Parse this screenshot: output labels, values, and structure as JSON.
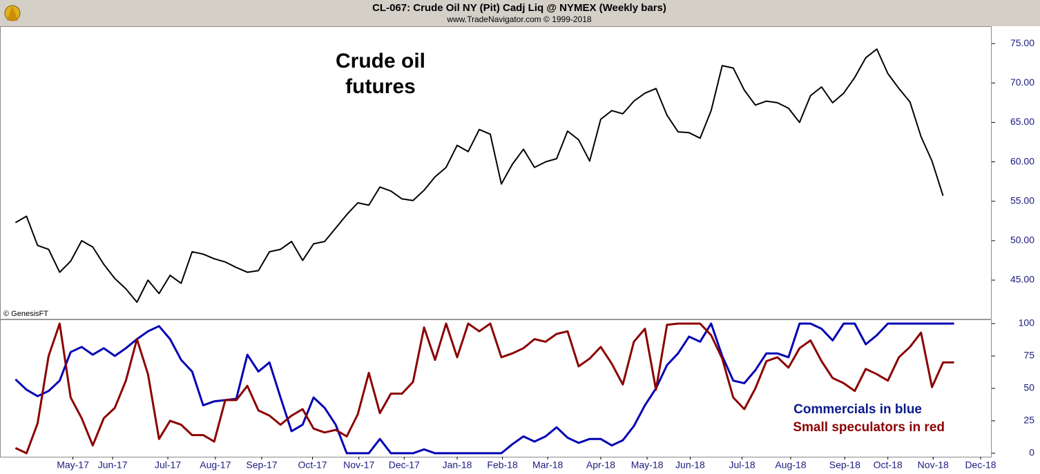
{
  "header": {
    "title": "CL-067:  Crude Oil NY (Pit) Cadj Liq @ NYMEX  (Weekly bars)",
    "subtitle": "www.TradeNavigator.com © 1999-2018"
  },
  "chart_data": [
    {
      "type": "line",
      "annotation": [
        "Crude oil",
        "futures"
      ],
      "credit": "© GenesisFT",
      "color": "#000000",
      "x": [
        0,
        1,
        2,
        3,
        4,
        5,
        6,
        7,
        8,
        9,
        10,
        11,
        12,
        13,
        14,
        15,
        16,
        17,
        18,
        19,
        20,
        21,
        22,
        23,
        24,
        25,
        26,
        27,
        28,
        29,
        30,
        31,
        32,
        33,
        34,
        35,
        36,
        37,
        38,
        39,
        40,
        41,
        42,
        43,
        44,
        45,
        46,
        47,
        48,
        49,
        50,
        51,
        52,
        53,
        54,
        55,
        56,
        57,
        58,
        59,
        60,
        61,
        62,
        63,
        64,
        65,
        66,
        67,
        68,
        69,
        70,
        71,
        72,
        73,
        74,
        75,
        76,
        77,
        78,
        79,
        80,
        81,
        82,
        83,
        84
      ],
      "values": [
        52.3,
        53.1,
        49.4,
        48.9,
        46.0,
        47.4,
        50.0,
        49.2,
        47.0,
        45.2,
        43.9,
        42.2,
        45.0,
        43.3,
        45.6,
        44.6,
        48.6,
        48.3,
        47.7,
        47.3,
        46.6,
        46.0,
        46.2,
        48.6,
        48.9,
        49.9,
        47.5,
        49.6,
        49.9,
        51.6,
        53.3,
        54.8,
        54.5,
        56.8,
        56.3,
        55.3,
        55.1,
        56.4,
        58.1,
        59.3,
        62.1,
        61.3,
        64.1,
        63.5,
        57.2,
        59.7,
        61.6,
        59.3,
        60.0,
        60.4,
        63.9,
        62.8,
        60.1,
        65.4,
        66.5,
        66.1,
        67.7,
        68.7,
        69.3,
        65.9,
        63.8,
        63.7,
        63.0,
        66.5,
        72.2,
        71.9,
        69.1,
        67.2,
        67.7,
        67.5,
        66.8,
        65.0,
        68.4,
        69.5,
        67.5,
        68.7,
        70.7,
        73.2,
        74.3,
        71.2,
        69.3,
        67.6,
        63.2,
        60.1,
        55.7
      ],
      "xlim": [
        -1.4,
        88.4
      ],
      "ylim": [
        40.1,
        77.2
      ],
      "yticks": [
        {
          "value": 45,
          "label": "45.00"
        },
        {
          "value": 50,
          "label": "50.00"
        },
        {
          "value": 55,
          "label": "55.00"
        },
        {
          "value": 60,
          "label": "60.00"
        },
        {
          "value": 65,
          "label": "65.00"
        },
        {
          "value": 70,
          "label": "70.00"
        },
        {
          "value": 75,
          "label": "75.00"
        }
      ]
    },
    {
      "type": "line",
      "annotation": [
        "Commercials in blue",
        "Small speculators in red"
      ],
      "x": [
        0,
        1,
        2,
        3,
        4,
        5,
        6,
        7,
        8,
        9,
        10,
        11,
        12,
        13,
        14,
        15,
        16,
        17,
        18,
        19,
        20,
        21,
        22,
        23,
        24,
        25,
        26,
        27,
        28,
        29,
        30,
        31,
        32,
        33,
        34,
        35,
        36,
        37,
        38,
        39,
        40,
        41,
        42,
        43,
        44,
        45,
        46,
        47,
        48,
        49,
        50,
        51,
        52,
        53,
        54,
        55,
        56,
        57,
        58,
        59,
        60,
        61,
        62,
        63,
        64,
        65,
        66,
        67,
        68,
        69,
        70,
        71,
        72,
        73,
        74,
        75,
        76,
        77,
        78,
        79,
        80,
        81,
        82,
        83,
        84,
        85
      ],
      "series": [
        {
          "name": "Commercials",
          "color": "#0000b4",
          "values": [
            57,
            49,
            44,
            48,
            56,
            78,
            82,
            76,
            81,
            75,
            81,
            88,
            94,
            98,
            88,
            72,
            63,
            37,
            40,
            41,
            42,
            76,
            63,
            70,
            43,
            17,
            22,
            43,
            35,
            22,
            0,
            0,
            0,
            11,
            0,
            0,
            0,
            3,
            0,
            0,
            0,
            0,
            0,
            0,
            0,
            7,
            13,
            9,
            13,
            20,
            12,
            8,
            11,
            11,
            6,
            10,
            21,
            37,
            50,
            68,
            77,
            90,
            86,
            100,
            75,
            56,
            54,
            64,
            77,
            77,
            74,
            100,
            100,
            96,
            87,
            100,
            100,
            84,
            91,
            100,
            100,
            100,
            100,
            100,
            100,
            100
          ]
        },
        {
          "name": "Small speculators",
          "color": "#8b0000",
          "values": [
            4,
            0,
            23,
            75,
            100,
            43,
            27,
            6,
            27,
            35,
            56,
            88,
            61,
            11,
            25,
            22,
            14,
            14,
            9,
            41,
            41,
            52,
            33,
            29,
            22,
            29,
            34,
            19,
            16,
            18,
            13,
            30,
            62,
            31,
            46,
            46,
            55,
            97,
            72,
            100,
            74,
            100,
            94,
            100,
            74,
            77,
            81,
            88,
            86,
            92,
            94,
            67,
            73,
            82,
            69,
            53,
            86,
            96,
            49,
            99,
            100,
            100,
            100,
            91,
            73,
            43,
            34,
            50,
            71,
            74,
            66,
            81,
            87,
            71,
            58,
            54,
            48,
            65,
            61,
            56,
            74,
            82,
            93,
            51,
            70,
            70
          ]
        }
      ],
      "xlim": [
        -1.4,
        88.4
      ],
      "ylim": [
        -2.7,
        103.7
      ],
      "yticks": [
        0,
        25,
        50,
        75,
        100
      ],
      "xticks": [
        {
          "value": 5.2,
          "label": "May-17"
        },
        {
          "value": 8.8,
          "label": "Jun-17"
        },
        {
          "value": 13.8,
          "label": "Jul-17"
        },
        {
          "value": 18.1,
          "label": "Aug-17"
        },
        {
          "value": 22.3,
          "label": "Sep-17"
        },
        {
          "value": 26.9,
          "label": "Oct-17"
        },
        {
          "value": 31.1,
          "label": "Nov-17"
        },
        {
          "value": 35.2,
          "label": "Dec-17"
        },
        {
          "value": 40.0,
          "label": "Jan-18"
        },
        {
          "value": 44.1,
          "label": "Feb-18"
        },
        {
          "value": 48.2,
          "label": "Mar-18"
        },
        {
          "value": 53.0,
          "label": "Apr-18"
        },
        {
          "value": 57.2,
          "label": "May-18"
        },
        {
          "value": 61.1,
          "label": "Jun-18"
        },
        {
          "value": 65.8,
          "label": "Jul-18"
        },
        {
          "value": 70.2,
          "label": "Aug-18"
        },
        {
          "value": 75.1,
          "label": "Sep-18"
        },
        {
          "value": 79.0,
          "label": "Oct-18"
        },
        {
          "value": 83.1,
          "label": "Nov-18"
        },
        {
          "value": 87.4,
          "label": "Dec-18"
        }
      ]
    }
  ]
}
